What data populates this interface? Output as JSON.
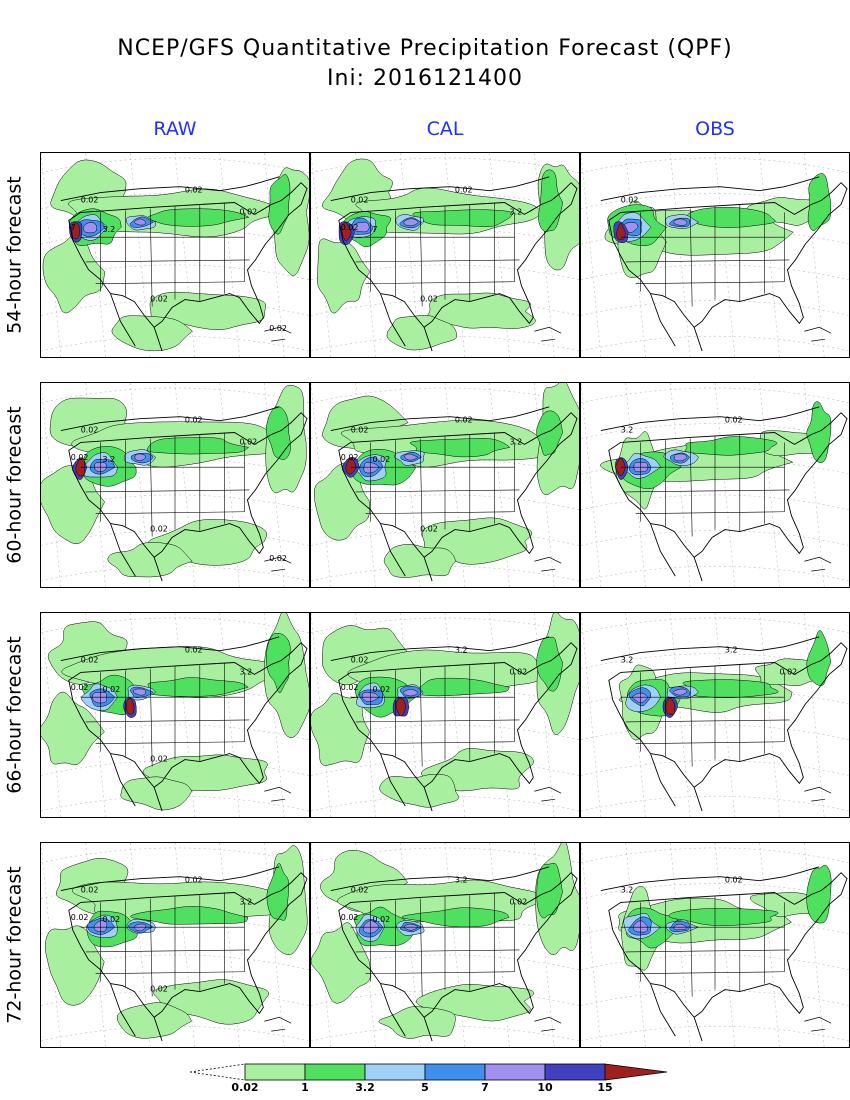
{
  "title": {
    "line1": "NCEP/GFS Quantitative Precipitation Forecast (QPF)",
    "line2": "Ini: 2016121400"
  },
  "columns": [
    {
      "key": "raw",
      "label": "RAW"
    },
    {
      "key": "cal",
      "label": "CAL"
    },
    {
      "key": "obs",
      "label": "OBS"
    }
  ],
  "rows": [
    {
      "key": "h54",
      "label": "54-hour forecast",
      "annotations": {
        "raw": [
          "0.02",
          "0.02",
          "0.02",
          "3.2",
          "7",
          "0.02",
          "0.02"
        ],
        "cal": [
          "0.02",
          "0.02",
          "3.2",
          "7",
          "0.02",
          "0.02"
        ],
        "obs": [
          "0.02"
        ]
      }
    },
    {
      "key": "h60",
      "label": "60-hour forecast",
      "annotations": {
        "raw": [
          "0.02",
          "0.02",
          "0.02",
          "3.2",
          "0.02",
          "0.02",
          "0.02"
        ],
        "cal": [
          "0.02",
          "0.02",
          "3.2",
          "0.02",
          "0.02",
          "0.02"
        ],
        "obs": [
          "3.2",
          "0.02"
        ]
      }
    },
    {
      "key": "h66",
      "label": "66-hour forecast",
      "annotations": {
        "raw": [
          "0.02",
          "0.02",
          "3.2",
          "0.02",
          "0.02",
          "0.02"
        ],
        "cal": [
          "0.02",
          "3.2",
          "0.02",
          "0.02",
          "0.02"
        ],
        "obs": [
          "3.2",
          "3.2",
          "0.02"
        ]
      }
    },
    {
      "key": "h72",
      "label": "72-hour forecast",
      "annotations": {
        "raw": [
          "0.02",
          "0.02",
          "3.2",
          "0.02",
          "0.02",
          "0.02"
        ],
        "cal": [
          "0.02",
          "3.2",
          "0.02",
          "0.02",
          "0.02"
        ],
        "obs": [
          "3.2",
          "0.02"
        ]
      }
    }
  ],
  "colorbar": {
    "levels": [
      "0.02",
      "1",
      "3.2",
      "5",
      "7",
      "10",
      "15"
    ],
    "colors": [
      "#a8f0a0",
      "#50e060",
      "#a0d0f8",
      "#4090f0",
      "#a090f0",
      "#4040c0",
      "#a02020"
    ]
  }
}
